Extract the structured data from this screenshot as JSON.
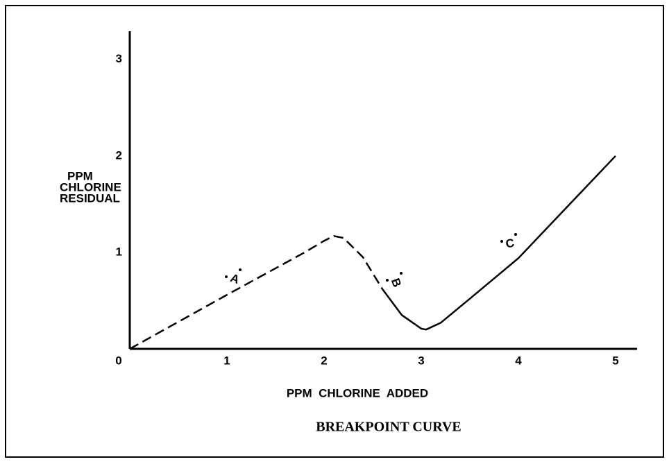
{
  "chart_data": {
    "type": "line",
    "title": "BREAKPOINT CURVE",
    "xlabel": "PPM  CHLORINE  ADDED",
    "ylabel": [
      "PPM",
      "CHLORINE",
      "RESIDUAL"
    ],
    "xlim": [
      0,
      5.2
    ],
    "ylim": [
      0,
      3.3
    ],
    "xticks": [
      0,
      1,
      2,
      3,
      4,
      5
    ],
    "yticks": [
      1,
      2,
      3
    ],
    "grid": false,
    "series": [
      {
        "color": "#000000",
        "style": "dashed",
        "x": [
          0,
          1,
          1.8,
          2.0,
          2.1,
          2.2,
          2.4,
          2.6
        ],
        "values": [
          0,
          0.56,
          1.0,
          1.12,
          1.17,
          1.15,
          0.95,
          0.62
        ]
      },
      {
        "color": "#000000",
        "style": "solid",
        "x": [
          2.6,
          2.8,
          3.0,
          3.05,
          3.2,
          3.5,
          4,
          4.5,
          5
        ],
        "values": [
          0.62,
          0.35,
          0.21,
          0.2,
          0.27,
          0.52,
          0.94,
          1.47,
          2.0
        ]
      }
    ],
    "annotations": [
      "A",
      "B",
      "C"
    ]
  }
}
